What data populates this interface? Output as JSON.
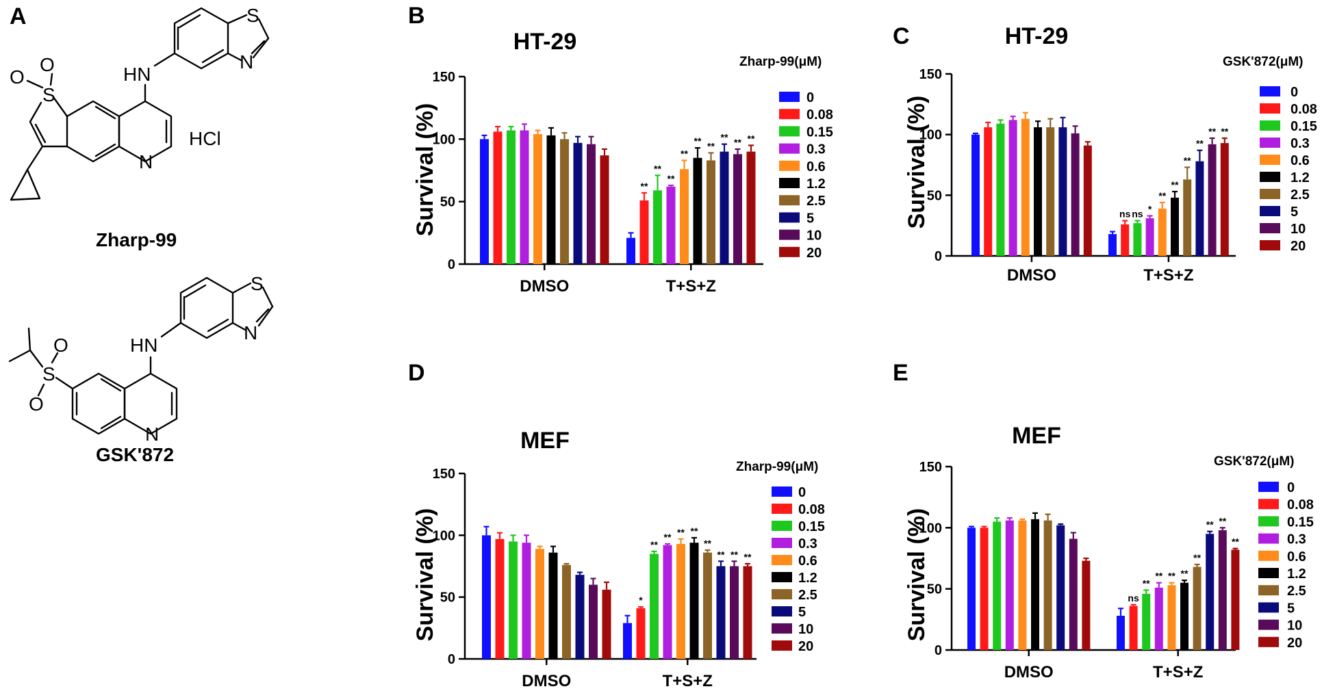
{
  "panel_a": {
    "label": "A",
    "compound1": {
      "name": "Zharp-99",
      "salt": "HCl",
      "atoms": {
        "S_ring": "S",
        "N_thiazole": "N",
        "NH": "HN",
        "N_quinoline": "N",
        "S_sulfone": "S",
        "O1": "O",
        "O2": "O"
      }
    },
    "compound2": {
      "name": "GSK'872",
      "atoms": {
        "S_ring": "S",
        "N_thiazole": "N",
        "NH": "HN",
        "N_quinoline": "N",
        "S_sulfone": "S",
        "O1": "O",
        "O2": "O"
      }
    }
  },
  "legend_colors": [
    "#1010ff",
    "#ff1a1a",
    "#1ec81e",
    "#b01ee0",
    "#ff8c1a",
    "#000000",
    "#8c6428",
    "#0a0a7a",
    "#5a0a5a",
    "#a00a0a"
  ],
  "chart_data": [
    {
      "panel": "B",
      "type": "bar",
      "title": "HT-29",
      "ylabel": "Survival (%)",
      "xlabel": "",
      "ylim": [
        0,
        150
      ],
      "yticks": [
        "0",
        "50",
        "100",
        "150"
      ],
      "categories": [
        "DMSO",
        "T+S+Z"
      ],
      "legend_title": "Zharp-99(μM)",
      "series": [
        {
          "name": "0",
          "values": [
            100,
            21
          ],
          "errors": [
            3,
            4
          ],
          "sig": [
            "",
            ""
          ]
        },
        {
          "name": "0.08",
          "values": [
            106,
            51
          ],
          "errors": [
            4,
            6
          ],
          "sig": [
            "",
            "**"
          ]
        },
        {
          "name": "0.15",
          "values": [
            107,
            59
          ],
          "errors": [
            3,
            12
          ],
          "sig": [
            "",
            "**"
          ]
        },
        {
          "name": "0.3",
          "values": [
            107,
            62
          ],
          "errors": [
            5,
            1
          ],
          "sig": [
            "",
            "**"
          ]
        },
        {
          "name": "0.6",
          "values": [
            104,
            76
          ],
          "errors": [
            3,
            7
          ],
          "sig": [
            "",
            "**"
          ]
        },
        {
          "name": "1.2",
          "values": [
            103,
            85
          ],
          "errors": [
            6,
            8
          ],
          "sig": [
            "",
            "**"
          ]
        },
        {
          "name": "2.5",
          "values": [
            100,
            83
          ],
          "errors": [
            5,
            6
          ],
          "sig": [
            "",
            "**"
          ]
        },
        {
          "name": "5",
          "values": [
            97,
            90
          ],
          "errors": [
            5,
            6
          ],
          "sig": [
            "",
            "**"
          ]
        },
        {
          "name": "10",
          "values": [
            96,
            88
          ],
          "errors": [
            6,
            4
          ],
          "sig": [
            "",
            "**"
          ]
        },
        {
          "name": "20",
          "values": [
            87,
            90
          ],
          "errors": [
            5,
            5
          ],
          "sig": [
            "",
            "**"
          ]
        }
      ]
    },
    {
      "panel": "C",
      "type": "bar",
      "title": "HT-29",
      "ylabel": "Survival (%)",
      "xlabel": "",
      "ylim": [
        0,
        150
      ],
      "yticks": [
        "0",
        "50",
        "100",
        "150"
      ],
      "categories": [
        "DMSO",
        "T+S+Z"
      ],
      "legend_title": "GSK'872(μM)",
      "series": [
        {
          "name": "0",
          "values": [
            100,
            18
          ],
          "errors": [
            1,
            2
          ],
          "sig": [
            "",
            ""
          ]
        },
        {
          "name": "0.08",
          "values": [
            106,
            26
          ],
          "errors": [
            4,
            3
          ],
          "sig": [
            "",
            "ns"
          ]
        },
        {
          "name": "0.15",
          "values": [
            109,
            27
          ],
          "errors": [
            3,
            2
          ],
          "sig": [
            "",
            "ns"
          ]
        },
        {
          "name": "0.3",
          "values": [
            112,
            31
          ],
          "errors": [
            3,
            2
          ],
          "sig": [
            "",
            "*"
          ]
        },
        {
          "name": "0.6",
          "values": [
            113,
            39
          ],
          "errors": [
            5,
            5
          ],
          "sig": [
            "",
            "**"
          ]
        },
        {
          "name": "1.2",
          "values": [
            106,
            48
          ],
          "errors": [
            5,
            5
          ],
          "sig": [
            "",
            "**"
          ]
        },
        {
          "name": "2.5",
          "values": [
            106,
            63
          ],
          "errors": [
            7,
            10
          ],
          "sig": [
            "",
            "**"
          ]
        },
        {
          "name": "5",
          "values": [
            106,
            78
          ],
          "errors": [
            8,
            9
          ],
          "sig": [
            "",
            "**"
          ]
        },
        {
          "name": "10",
          "values": [
            101,
            92
          ],
          "errors": [
            6,
            5
          ],
          "sig": [
            "",
            "**"
          ]
        },
        {
          "name": "20",
          "values": [
            91,
            93
          ],
          "errors": [
            3,
            4
          ],
          "sig": [
            "",
            "**"
          ]
        }
      ]
    },
    {
      "panel": "D",
      "type": "bar",
      "title": "MEF",
      "ylabel": "Survival (%)",
      "xlabel": "",
      "ylim": [
        0,
        150
      ],
      "yticks": [
        "0",
        "50",
        "100",
        "150"
      ],
      "categories": [
        "DMSO",
        "T+S+Z"
      ],
      "legend_title": "Zharp-99(μM)",
      "series": [
        {
          "name": "0",
          "values": [
            100,
            29
          ],
          "errors": [
            7,
            6
          ],
          "sig": [
            "",
            ""
          ]
        },
        {
          "name": "0.08",
          "values": [
            97,
            41
          ],
          "errors": [
            5,
            1
          ],
          "sig": [
            "",
            "*"
          ]
        },
        {
          "name": "0.15",
          "values": [
            95,
            85
          ],
          "errors": [
            5,
            2
          ],
          "sig": [
            "",
            "**"
          ]
        },
        {
          "name": "0.3",
          "values": [
            94,
            92
          ],
          "errors": [
            6,
            1
          ],
          "sig": [
            "",
            "**"
          ]
        },
        {
          "name": "0.6",
          "values": [
            89,
            93
          ],
          "errors": [
            2,
            4
          ],
          "sig": [
            "",
            "**"
          ]
        },
        {
          "name": "1.2",
          "values": [
            86,
            94
          ],
          "errors": [
            5,
            4
          ],
          "sig": [
            "",
            "**"
          ]
        },
        {
          "name": "2.5",
          "values": [
            76,
            86
          ],
          "errors": [
            1,
            2
          ],
          "sig": [
            "",
            "**"
          ]
        },
        {
          "name": "5",
          "values": [
            68,
            75
          ],
          "errors": [
            2,
            4
          ],
          "sig": [
            "",
            "**"
          ]
        },
        {
          "name": "10",
          "values": [
            60,
            75
          ],
          "errors": [
            5,
            4
          ],
          "sig": [
            "",
            "**"
          ]
        },
        {
          "name": "20",
          "values": [
            56,
            75
          ],
          "errors": [
            6,
            2
          ],
          "sig": [
            "",
            "**"
          ]
        }
      ]
    },
    {
      "panel": "E",
      "type": "bar",
      "title": "MEF",
      "ylabel": "Survival (%)",
      "xlabel": "",
      "ylim": [
        0,
        150
      ],
      "yticks": [
        "0",
        "50",
        "100",
        "150"
      ],
      "categories": [
        "DMSO",
        "T+S+Z"
      ],
      "legend_title": "GSK'872(μM)",
      "series": [
        {
          "name": "0",
          "values": [
            100,
            28
          ],
          "errors": [
            1,
            6
          ],
          "sig": [
            "",
            ""
          ]
        },
        {
          "name": "0.08",
          "values": [
            100,
            36
          ],
          "errors": [
            1,
            1
          ],
          "sig": [
            "",
            "ns"
          ]
        },
        {
          "name": "0.15",
          "values": [
            105,
            46
          ],
          "errors": [
            3,
            3
          ],
          "sig": [
            "",
            "**"
          ]
        },
        {
          "name": "0.3",
          "values": [
            106,
            51
          ],
          "errors": [
            2,
            4
          ],
          "sig": [
            "",
            "**"
          ]
        },
        {
          "name": "0.6",
          "values": [
            106,
            53
          ],
          "errors": [
            1,
            2
          ],
          "sig": [
            "",
            "**"
          ]
        },
        {
          "name": "1.2",
          "values": [
            107,
            55
          ],
          "errors": [
            5,
            2
          ],
          "sig": [
            "",
            "**"
          ]
        },
        {
          "name": "2.5",
          "values": [
            106,
            68
          ],
          "errors": [
            5,
            2
          ],
          "sig": [
            "",
            "**"
          ]
        },
        {
          "name": "5",
          "values": [
            102,
            95
          ],
          "errors": [
            1,
            2
          ],
          "sig": [
            "",
            "**"
          ]
        },
        {
          "name": "10",
          "values": [
            91,
            98
          ],
          "errors": [
            5,
            2
          ],
          "sig": [
            "",
            "**"
          ]
        },
        {
          "name": "20",
          "values": [
            73,
            82
          ],
          "errors": [
            2,
            1
          ],
          "sig": [
            "",
            "**"
          ]
        }
      ]
    }
  ]
}
